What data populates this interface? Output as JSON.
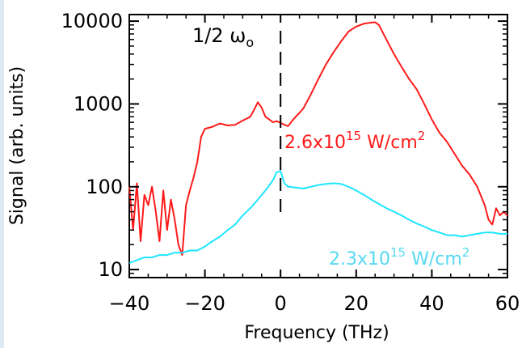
{
  "chart_data": {
    "type": "line",
    "xlabel": "Frequency (THz)",
    "ylabel": "Signal (arb. units)",
    "xlim": [
      -40,
      60
    ],
    "ylim": [
      8,
      12000
    ],
    "yscale": "log",
    "x_ticks": [
      -40,
      -20,
      0,
      20,
      40,
      60
    ],
    "x_tick_labels": [
      "−40",
      "−20",
      "0",
      "20",
      "40",
      "60"
    ],
    "y_ticks": [
      10,
      100,
      1000,
      10000
    ],
    "y_tick_labels": [
      "10",
      "100",
      "1000",
      "10000"
    ],
    "grid": false,
    "marker": {
      "x": 0,
      "style": "dashed",
      "label": "1/2 ω",
      "label_subscript": "o"
    },
    "series": [
      {
        "color": "#ff1a1a",
        "label_base": "2.6x10",
        "label_exp": "15",
        "label_unit": " W/cm",
        "label_unit_exp": "2",
        "x": [
          -40,
          -39,
          -38,
          -37,
          -36,
          -35,
          -34,
          -33,
          -32,
          -31,
          -30,
          -29,
          -28,
          -27,
          -26,
          -25,
          -24,
          -23,
          -22,
          -21,
          -20,
          -18,
          -16,
          -14,
          -12,
          -10,
          -8,
          -7,
          -6,
          -5,
          -4,
          -3,
          -2,
          -1,
          0,
          1,
          2,
          3,
          4,
          5,
          6,
          8,
          10,
          12,
          14,
          16,
          18,
          20,
          22,
          24,
          25,
          26,
          28,
          30,
          32,
          34,
          36,
          38,
          40,
          42,
          44,
          46,
          48,
          50,
          52,
          54,
          55,
          56,
          57,
          58,
          59,
          60
        ],
        "y": [
          100,
          30,
          110,
          22,
          80,
          60,
          100,
          50,
          22,
          90,
          30,
          70,
          40,
          20,
          15,
          60,
          90,
          130,
          200,
          400,
          500,
          530,
          580,
          550,
          560,
          630,
          700,
          850,
          1050,
          900,
          700,
          650,
          600,
          620,
          590,
          560,
          540,
          620,
          700,
          780,
          880,
          1300,
          2000,
          3000,
          4200,
          5700,
          7500,
          8600,
          9300,
          9600,
          9700,
          9000,
          6000,
          4000,
          2800,
          2000,
          1500,
          1000,
          650,
          450,
          350,
          250,
          180,
          140,
          100,
          60,
          40,
          35,
          55,
          45,
          50,
          45
        ]
      },
      {
        "color": "#1de6ff",
        "label_base": "2.3x10",
        "label_exp": "15",
        "label_unit": " W/cm",
        "label_unit_exp": "2",
        "x": [
          -40,
          -38,
          -36,
          -34,
          -32,
          -30,
          -28,
          -26,
          -24,
          -22,
          -20,
          -18,
          -16,
          -14,
          -12,
          -10,
          -8,
          -6,
          -4,
          -2,
          -1,
          0,
          1,
          2,
          4,
          6,
          8,
          10,
          12,
          14,
          16,
          18,
          20,
          22,
          24,
          26,
          28,
          30,
          32,
          34,
          36,
          38,
          40,
          42,
          44,
          46,
          48,
          50,
          52,
          54,
          56,
          58,
          60
        ],
        "y": [
          12,
          13,
          14,
          14,
          15,
          15,
          16,
          16,
          17,
          17,
          19,
          22,
          25,
          30,
          35,
          45,
          55,
          70,
          90,
          120,
          150,
          155,
          110,
          100,
          98,
          95,
          100,
          105,
          108,
          110,
          108,
          100,
          90,
          80,
          70,
          62,
          55,
          50,
          45,
          40,
          36,
          33,
          30,
          28,
          26,
          26,
          25,
          26,
          27,
          28,
          28,
          27,
          27
        ]
      }
    ]
  }
}
